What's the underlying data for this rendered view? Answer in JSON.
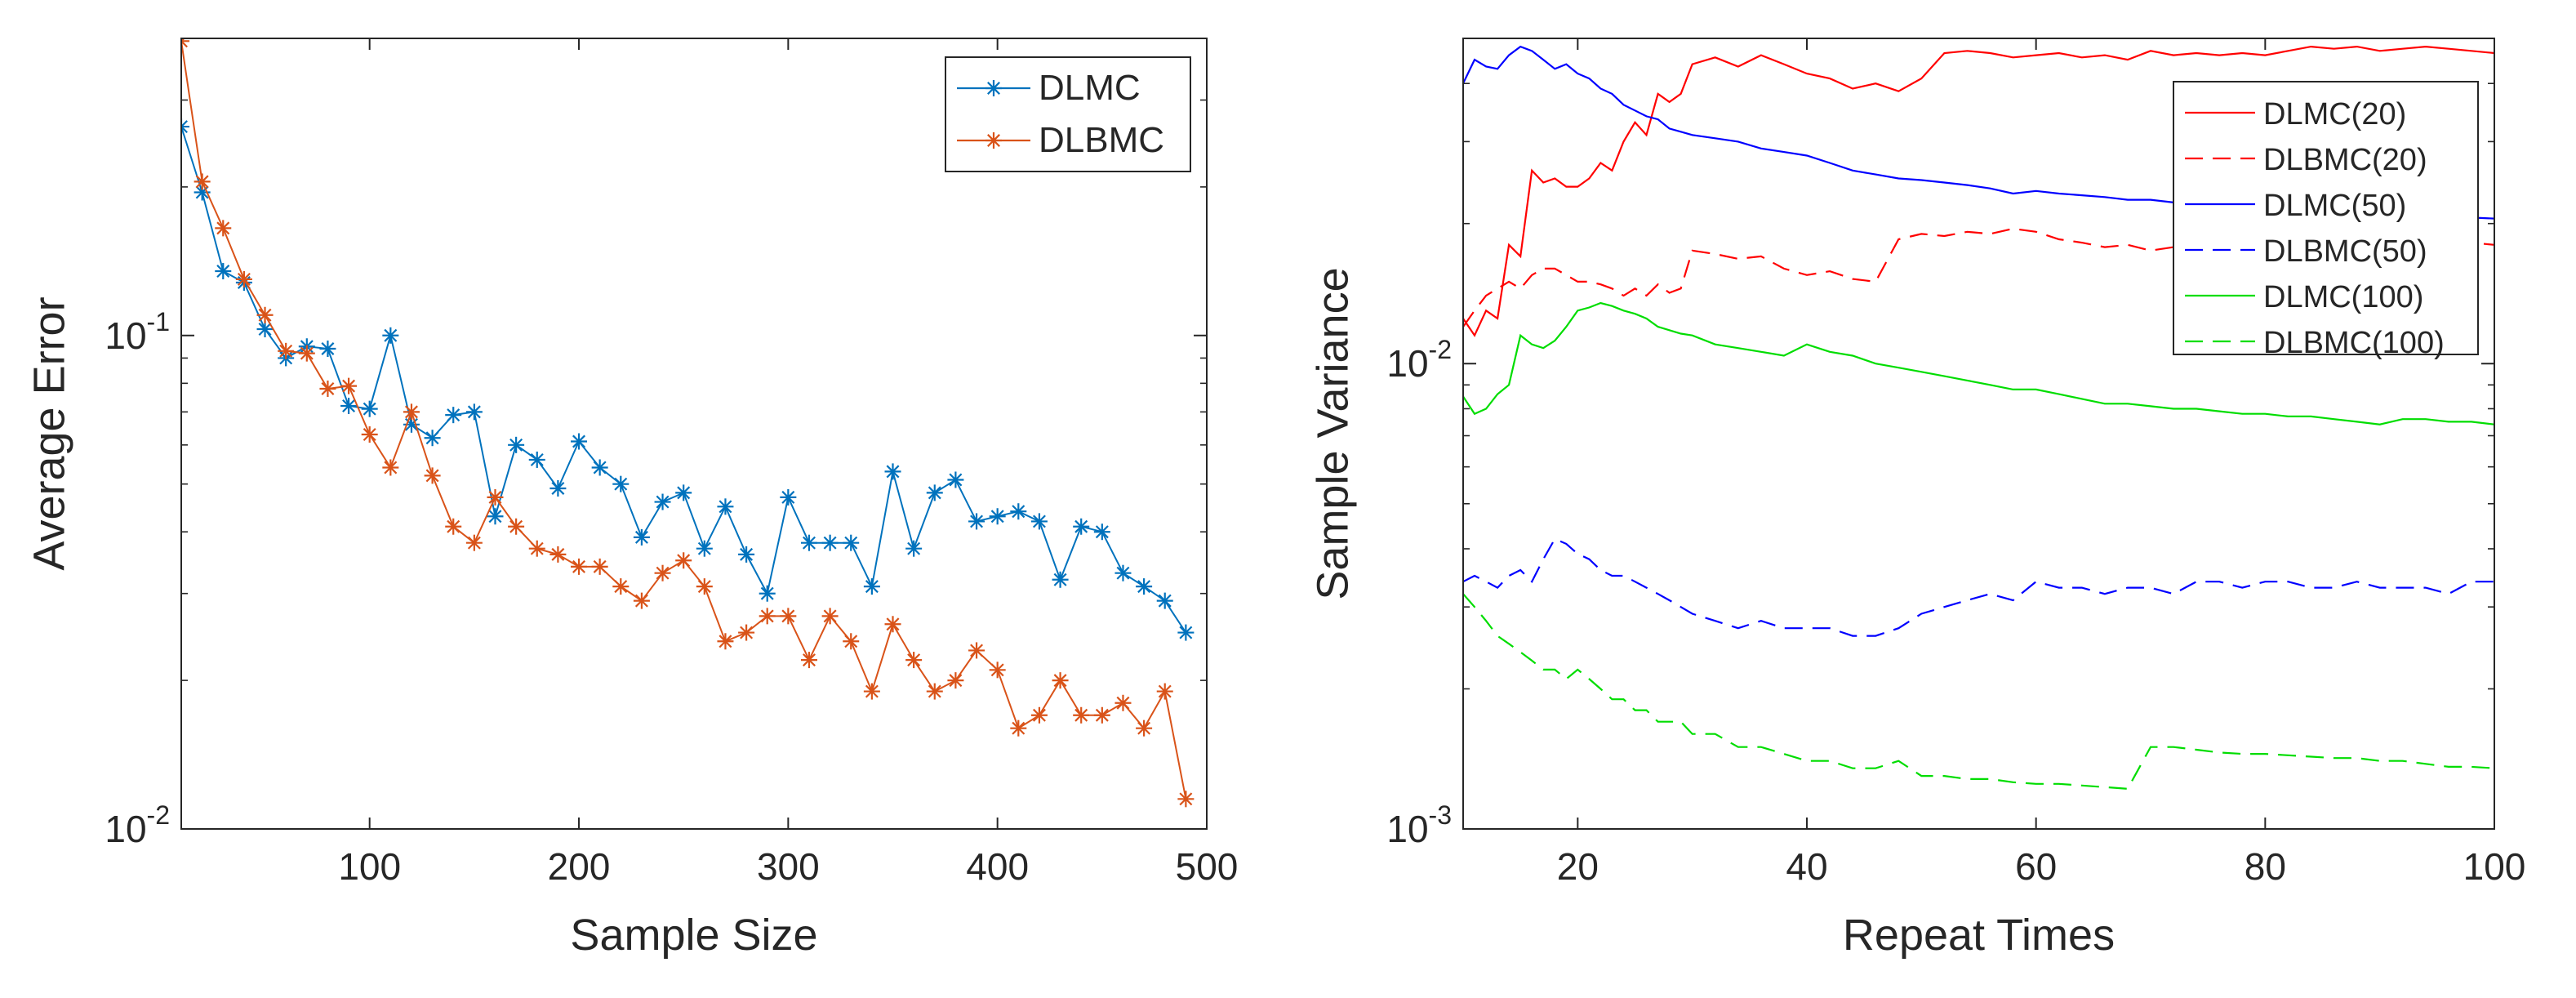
{
  "chart_data": [
    {
      "type": "line",
      "xlabel": "Sample Size",
      "ylabel": "Average Error",
      "yscale": "log",
      "xlim": [
        10,
        500
      ],
      "ylim": [
        0.01,
        0.4
      ],
      "xticks": [
        100,
        200,
        300,
        400,
        500
      ],
      "xtick_labels": [
        "100",
        "200",
        "300",
        "400",
        "500"
      ],
      "yticks": [
        {
          "value": 0.1,
          "base": "10",
          "exp": "-1"
        },
        {
          "value": 0.01,
          "base": "10",
          "exp": "-2"
        }
      ],
      "legend_position": "top-right",
      "x": [
        10,
        20,
        30,
        40,
        50,
        60,
        70,
        80,
        90,
        100,
        110,
        120,
        130,
        140,
        150,
        160,
        170,
        180,
        190,
        200,
        210,
        220,
        230,
        240,
        250,
        260,
        270,
        280,
        290,
        300,
        310,
        320,
        330,
        340,
        350,
        360,
        370,
        380,
        390,
        400,
        410,
        420,
        430,
        440,
        450,
        460,
        470,
        480,
        490
      ],
      "series": [
        {
          "name": "DLMC",
          "color": "#0072BD",
          "marker": "asterisk",
          "values": [
            0.265,
            0.195,
            0.135,
            0.128,
            0.103,
            0.09,
            0.095,
            0.094,
            0.072,
            0.071,
            0.1,
            0.066,
            0.062,
            0.069,
            0.07,
            0.043,
            0.06,
            0.056,
            0.049,
            0.061,
            0.054,
            0.05,
            0.039,
            0.046,
            0.048,
            0.037,
            0.045,
            0.036,
            0.03,
            0.047,
            0.038,
            0.038,
            0.038,
            0.031,
            0.053,
            0.037,
            0.048,
            0.051,
            0.042,
            0.043,
            0.044,
            0.042,
            0.032,
            0.041,
            0.04,
            0.033,
            0.031,
            0.029,
            0.025
          ]
        },
        {
          "name": "DLBMC",
          "color": "#D95319",
          "marker": "asterisk",
          "values": [
            0.395,
            0.205,
            0.165,
            0.13,
            0.11,
            0.093,
            0.092,
            0.078,
            0.079,
            0.063,
            0.054,
            0.07,
            0.052,
            0.041,
            0.038,
            0.047,
            0.041,
            0.037,
            0.036,
            0.034,
            0.034,
            0.031,
            0.029,
            0.033,
            0.035,
            0.031,
            0.024,
            0.025,
            0.027,
            0.027,
            0.022,
            0.027,
            0.024,
            0.019,
            0.026,
            0.022,
            0.019,
            0.02,
            0.023,
            0.021,
            0.016,
            0.017,
            0.02,
            0.017,
            0.017,
            0.018,
            0.016,
            0.019,
            0.0115
          ]
        }
      ]
    },
    {
      "type": "line",
      "xlabel": "Repeat Times",
      "ylabel": "Sample Variance",
      "yscale": "log",
      "xlim": [
        10,
        100
      ],
      "ylim": [
        0.001,
        0.05
      ],
      "xticks": [
        20,
        40,
        60,
        80,
        100
      ],
      "xtick_labels": [
        "20",
        "40",
        "60",
        "80",
        "100"
      ],
      "yticks": [
        {
          "value": 0.01,
          "base": "10",
          "exp": "-2"
        },
        {
          "value": 0.001,
          "base": "10",
          "exp": "-3"
        }
      ],
      "legend_position": "top-right",
      "series": [
        {
          "name": "DLMC(20)",
          "color": "#ff0000",
          "dash": "solid",
          "x": [
            10,
            11,
            12,
            13,
            14,
            15,
            16,
            17,
            18,
            19,
            20,
            21,
            22,
            23,
            24,
            25,
            26,
            27,
            28,
            29,
            30,
            32,
            34,
            36,
            38,
            40,
            42,
            44,
            46,
            48,
            50,
            52,
            54,
            56,
            58,
            60,
            62,
            64,
            66,
            68,
            70,
            72,
            74,
            76,
            78,
            80,
            82,
            84,
            86,
            88,
            90,
            92,
            94,
            96,
            98,
            100
          ],
          "values": [
            0.0125,
            0.0115,
            0.013,
            0.0125,
            0.018,
            0.017,
            0.026,
            0.0245,
            0.025,
            0.024,
            0.024,
            0.025,
            0.027,
            0.026,
            0.03,
            0.033,
            0.031,
            0.038,
            0.0365,
            0.038,
            0.044,
            0.0455,
            0.0435,
            0.046,
            0.044,
            0.042,
            0.041,
            0.039,
            0.04,
            0.0385,
            0.041,
            0.0465,
            0.047,
            0.0465,
            0.0455,
            0.046,
            0.0465,
            0.0455,
            0.046,
            0.045,
            0.047,
            0.046,
            0.0465,
            0.046,
            0.0465,
            0.046,
            0.047,
            0.048,
            0.0475,
            0.048,
            0.047,
            0.0475,
            0.048,
            0.0475,
            0.047,
            0.0465
          ]
        },
        {
          "name": "DLBMC(20)",
          "color": "#ff0000",
          "dash": "dashed",
          "x": [
            10,
            11,
            12,
            13,
            14,
            15,
            16,
            17,
            18,
            19,
            20,
            21,
            22,
            23,
            24,
            25,
            26,
            27,
            28,
            29,
            30,
            32,
            34,
            36,
            38,
            40,
            42,
            44,
            46,
            48,
            50,
            52,
            54,
            56,
            58,
            60,
            62,
            64,
            66,
            68,
            70,
            72,
            74,
            76,
            78,
            80,
            82,
            84,
            86,
            88,
            90,
            92,
            94,
            96,
            98,
            100
          ],
          "values": [
            0.012,
            0.013,
            0.014,
            0.0145,
            0.015,
            0.0145,
            0.0155,
            0.016,
            0.016,
            0.0155,
            0.015,
            0.015,
            0.0148,
            0.0145,
            0.014,
            0.0145,
            0.014,
            0.0148,
            0.0142,
            0.0145,
            0.0175,
            0.0172,
            0.0168,
            0.017,
            0.016,
            0.0155,
            0.0158,
            0.0152,
            0.015,
            0.0185,
            0.019,
            0.0188,
            0.0192,
            0.019,
            0.0195,
            0.0192,
            0.0185,
            0.0182,
            0.0178,
            0.018,
            0.0175,
            0.0178,
            0.0185,
            0.0182,
            0.018,
            0.0178,
            0.0182,
            0.0185,
            0.018,
            0.0182,
            0.0178,
            0.018,
            0.0182,
            0.0185,
            0.0182,
            0.018
          ]
        },
        {
          "name": "DLMC(50)",
          "color": "#0000ff",
          "dash": "solid",
          "x": [
            10,
            11,
            12,
            13,
            14,
            15,
            16,
            17,
            18,
            19,
            20,
            21,
            22,
            23,
            24,
            25,
            26,
            27,
            28,
            29,
            30,
            32,
            34,
            36,
            38,
            40,
            42,
            44,
            46,
            48,
            50,
            52,
            54,
            56,
            58,
            60,
            62,
            64,
            66,
            68,
            70,
            72,
            74,
            76,
            78,
            80,
            82,
            84,
            86,
            88,
            90,
            92,
            94,
            96,
            98,
            100
          ],
          "values": [
            0.04,
            0.045,
            0.0435,
            0.043,
            0.046,
            0.048,
            0.047,
            0.045,
            0.043,
            0.044,
            0.042,
            0.041,
            0.039,
            0.038,
            0.036,
            0.035,
            0.034,
            0.0335,
            0.032,
            0.0315,
            0.031,
            0.0305,
            0.03,
            0.029,
            0.0285,
            0.028,
            0.027,
            0.026,
            0.0255,
            0.025,
            0.0248,
            0.0245,
            0.0242,
            0.0238,
            0.0232,
            0.0235,
            0.0232,
            0.023,
            0.0228,
            0.0225,
            0.0225,
            0.0222,
            0.022,
            0.0218,
            0.0215,
            0.0218,
            0.0215,
            0.0212,
            0.021,
            0.021,
            0.0208,
            0.021,
            0.0208,
            0.0205,
            0.0206,
            0.0205
          ]
        },
        {
          "name": "DLBMC(50)",
          "color": "#0000ff",
          "dash": "dashed",
          "x": [
            10,
            11,
            12,
            13,
            14,
            15,
            16,
            17,
            18,
            19,
            20,
            21,
            22,
            23,
            24,
            25,
            26,
            27,
            28,
            29,
            30,
            32,
            34,
            36,
            38,
            40,
            42,
            44,
            46,
            48,
            50,
            52,
            54,
            56,
            58,
            60,
            62,
            64,
            66,
            68,
            70,
            72,
            74,
            76,
            78,
            80,
            82,
            84,
            86,
            88,
            90,
            92,
            94,
            96,
            98,
            100
          ],
          "values": [
            0.0034,
            0.0035,
            0.0034,
            0.0033,
            0.0035,
            0.0036,
            0.0034,
            0.0038,
            0.0042,
            0.0041,
            0.0039,
            0.0038,
            0.0036,
            0.0035,
            0.0035,
            0.0034,
            0.0033,
            0.0032,
            0.0031,
            0.003,
            0.0029,
            0.0028,
            0.0027,
            0.0028,
            0.0027,
            0.0027,
            0.0027,
            0.0026,
            0.0026,
            0.0027,
            0.0029,
            0.003,
            0.0031,
            0.0032,
            0.0031,
            0.0034,
            0.0033,
            0.0033,
            0.0032,
            0.0033,
            0.0033,
            0.0032,
            0.0034,
            0.0034,
            0.0033,
            0.0034,
            0.0034,
            0.0033,
            0.0033,
            0.0034,
            0.0033,
            0.0033,
            0.0033,
            0.0032,
            0.0034,
            0.0034
          ]
        },
        {
          "name": "DLMC(100)",
          "color": "#00dd00",
          "dash": "solid",
          "x": [
            10,
            11,
            12,
            13,
            14,
            15,
            16,
            17,
            18,
            19,
            20,
            21,
            22,
            23,
            24,
            25,
            26,
            27,
            28,
            29,
            30,
            32,
            34,
            36,
            38,
            40,
            42,
            44,
            46,
            48,
            50,
            52,
            54,
            56,
            58,
            60,
            62,
            64,
            66,
            68,
            70,
            72,
            74,
            76,
            78,
            80,
            82,
            84,
            86,
            88,
            90,
            92,
            94,
            96,
            98,
            100
          ],
          "values": [
            0.0085,
            0.0078,
            0.008,
            0.0086,
            0.009,
            0.0115,
            0.011,
            0.0108,
            0.0112,
            0.012,
            0.013,
            0.0132,
            0.0135,
            0.0133,
            0.013,
            0.0128,
            0.0125,
            0.012,
            0.0118,
            0.0116,
            0.0115,
            0.011,
            0.0108,
            0.0106,
            0.0104,
            0.011,
            0.0106,
            0.0104,
            0.01,
            0.0098,
            0.0096,
            0.0094,
            0.0092,
            0.009,
            0.0088,
            0.0088,
            0.0086,
            0.0084,
            0.0082,
            0.0082,
            0.0081,
            0.008,
            0.008,
            0.0079,
            0.0078,
            0.0078,
            0.0077,
            0.0077,
            0.0076,
            0.0075,
            0.0074,
            0.0076,
            0.0076,
            0.0075,
            0.0075,
            0.0074
          ]
        },
        {
          "name": "DLBMC(100)",
          "color": "#00dd00",
          "dash": "dashed",
          "x": [
            10,
            11,
            12,
            13,
            14,
            15,
            16,
            17,
            18,
            19,
            20,
            21,
            22,
            23,
            24,
            25,
            26,
            27,
            28,
            29,
            30,
            32,
            34,
            36,
            38,
            40,
            42,
            44,
            46,
            48,
            50,
            52,
            54,
            56,
            58,
            60,
            62,
            64,
            66,
            68,
            70,
            72,
            74,
            76,
            78,
            80,
            82,
            84,
            86,
            88,
            90,
            92,
            94,
            96,
            98,
            100
          ],
          "values": [
            0.0032,
            0.003,
            0.0028,
            0.0026,
            0.0025,
            0.0024,
            0.0023,
            0.0022,
            0.0022,
            0.0021,
            0.0022,
            0.0021,
            0.002,
            0.0019,
            0.0019,
            0.0018,
            0.0018,
            0.0017,
            0.0017,
            0.0017,
            0.0016,
            0.0016,
            0.0015,
            0.0015,
            0.00145,
            0.0014,
            0.0014,
            0.00135,
            0.00135,
            0.0014,
            0.0013,
            0.0013,
            0.00128,
            0.00128,
            0.00126,
            0.00125,
            0.00125,
            0.00124,
            0.00123,
            0.00122,
            0.0015,
            0.0015,
            0.00148,
            0.00146,
            0.00145,
            0.00145,
            0.00144,
            0.00143,
            0.00142,
            0.00142,
            0.0014,
            0.0014,
            0.00138,
            0.00136,
            0.00136,
            0.00135
          ]
        }
      ]
    }
  ]
}
